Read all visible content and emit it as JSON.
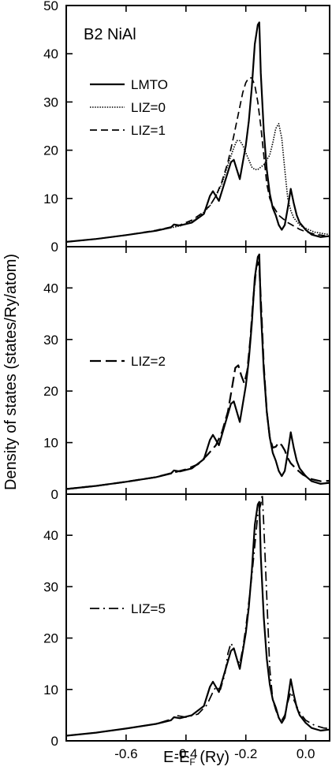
{
  "chart_data": {
    "type": "line",
    "ylabel": "Density of states (states/Ry/atom)",
    "xlabel_main": "E-E",
    "xlabel_sub": "F",
    "xlabel_unit": " (Ry)",
    "xlim": [
      -0.8,
      0.08
    ],
    "x_ticks": [
      -0.6,
      -0.4,
      -0.2,
      0.0
    ],
    "x_tick_labels": [
      "-0.6",
      "-0.4",
      "-0.2",
      "0.0"
    ],
    "panels": [
      {
        "title": "B2 NiAl",
        "ylim": [
          0,
          50
        ],
        "y_ticks": [
          0,
          10,
          20,
          30,
          40,
          50
        ],
        "y_tick_labels": [
          "0",
          "10",
          "20",
          "30",
          "40",
          "50"
        ],
        "series": [
          {
            "name": "LMTO",
            "style": "solid",
            "x": [
              -0.8,
              -0.7,
              -0.6,
              -0.5,
              -0.45,
              -0.44,
              -0.42,
              -0.38,
              -0.34,
              -0.32,
              -0.31,
              -0.3,
              -0.29,
              -0.27,
              -0.25,
              -0.24,
              -0.23,
              -0.22,
              -0.21,
              -0.2,
              -0.19,
              -0.18,
              -0.17,
              -0.16,
              -0.155,
              -0.15,
              -0.14,
              -0.13,
              -0.12,
              -0.11,
              -0.1,
              -0.09,
              -0.08,
              -0.07,
              -0.06,
              -0.05,
              -0.04,
              -0.03,
              -0.02,
              0.0,
              0.02,
              0.05,
              0.08
            ],
            "y": [
              1,
              1.6,
              2.4,
              3.3,
              4.0,
              4.6,
              4.4,
              5.0,
              6.8,
              10.5,
              11.5,
              10.5,
              9.5,
              13.5,
              17.5,
              18.0,
              16.0,
              14.0,
              17.5,
              21.0,
              26.0,
              33.0,
              42.0,
              46.0,
              46.5,
              36.0,
              24.0,
              16.0,
              11.0,
              8.0,
              6.5,
              4.5,
              3.5,
              4.5,
              8.0,
              12.0,
              9.0,
              6.5,
              5.0,
              3.5,
              2.5,
              2.0,
              2.2
            ]
          },
          {
            "name": "LIZ=0",
            "style": "dotted",
            "x": [
              -0.8,
              -0.7,
              -0.6,
              -0.5,
              -0.42,
              -0.38,
              -0.35,
              -0.32,
              -0.3,
              -0.28,
              -0.26,
              -0.24,
              -0.23,
              -0.22,
              -0.21,
              -0.2,
              -0.19,
              -0.18,
              -0.17,
              -0.16,
              -0.14,
              -0.12,
              -0.11,
              -0.1,
              -0.09,
              -0.08,
              -0.07,
              -0.06,
              -0.05,
              -0.04,
              -0.02,
              0.0,
              0.03,
              0.06,
              0.08
            ],
            "y": [
              1,
              1.6,
              2.4,
              3.3,
              4.3,
              5.2,
              6.5,
              8.5,
              10.5,
              13.0,
              17.0,
              20.5,
              22.0,
              22.0,
              21.0,
              19.5,
              18.0,
              16.5,
              16.0,
              16.0,
              17.0,
              19.0,
              21.5,
              24.5,
              25.5,
              22.5,
              16.0,
              10.0,
              7.5,
              6.0,
              4.5,
              3.8,
              3.0,
              2.7,
              2.5
            ]
          },
          {
            "name": "LIZ=1",
            "style": "dashed",
            "x": [
              -0.8,
              -0.7,
              -0.6,
              -0.5,
              -0.42,
              -0.38,
              -0.35,
              -0.32,
              -0.3,
              -0.28,
              -0.26,
              -0.24,
              -0.22,
              -0.21,
              -0.2,
              -0.19,
              -0.18,
              -0.17,
              -0.16,
              -0.15,
              -0.14,
              -0.13,
              -0.12,
              -0.11,
              -0.1,
              -0.09,
              -0.08,
              -0.06,
              -0.04,
              -0.02,
              0.0,
              0.03,
              0.06,
              0.08
            ],
            "y": [
              1,
              1.6,
              2.4,
              3.4,
              4.5,
              5.5,
              6.8,
              8.5,
              10.5,
              13.5,
              17.5,
              23.0,
              29.0,
              32.0,
              34.0,
              35.0,
              35.0,
              33.5,
              30.0,
              25.0,
              19.0,
              13.0,
              10.0,
              8.5,
              7.5,
              6.5,
              6.0,
              5.0,
              4.3,
              3.6,
              3.1,
              2.6,
              2.3,
              2.1
            ]
          }
        ]
      },
      {
        "title": "",
        "ylim": [
          0,
          48
        ],
        "y_ticks": [
          0,
          10,
          20,
          30,
          40
        ],
        "y_tick_labels": [
          "0",
          "10",
          "20",
          "30",
          "40"
        ],
        "series": [
          {
            "name": "LMTO",
            "style": "solid",
            "legend": false,
            "x": [
              -0.8,
              -0.7,
              -0.6,
              -0.5,
              -0.45,
              -0.44,
              -0.42,
              -0.38,
              -0.34,
              -0.32,
              -0.31,
              -0.3,
              -0.29,
              -0.27,
              -0.25,
              -0.24,
              -0.23,
              -0.22,
              -0.21,
              -0.2,
              -0.19,
              -0.18,
              -0.17,
              -0.16,
              -0.155,
              -0.15,
              -0.14,
              -0.13,
              -0.12,
              -0.11,
              -0.1,
              -0.09,
              -0.08,
              -0.07,
              -0.06,
              -0.05,
              -0.04,
              -0.03,
              -0.02,
              0.0,
              0.02,
              0.05,
              0.08
            ],
            "y": [
              1,
              1.6,
              2.4,
              3.3,
              4.0,
              4.6,
              4.4,
              5.0,
              6.8,
              10.5,
              11.5,
              10.5,
              9.5,
              13.5,
              17.5,
              18.0,
              16.0,
              14.0,
              17.5,
              21.0,
              26.0,
              33.0,
              42.0,
              46.0,
              46.5,
              36.0,
              24.0,
              16.0,
              11.0,
              8.0,
              6.5,
              4.5,
              3.5,
              4.5,
              8.0,
              12.0,
              9.0,
              6.5,
              5.0,
              3.5,
              2.5,
              2.0,
              2.2
            ]
          },
          {
            "name": "LIZ=2",
            "style": "longdash",
            "x": [
              -0.8,
              -0.7,
              -0.6,
              -0.5,
              -0.44,
              -0.4,
              -0.36,
              -0.33,
              -0.3,
              -0.28,
              -0.26,
              -0.245,
              -0.235,
              -0.225,
              -0.215,
              -0.205,
              -0.195,
              -0.185,
              -0.175,
              -0.165,
              -0.16,
              -0.155,
              -0.15,
              -0.14,
              -0.13,
              -0.12,
              -0.11,
              -0.1,
              -0.09,
              -0.08,
              -0.07,
              -0.06,
              -0.05,
              -0.03,
              -0.01,
              0.02,
              0.05,
              0.08
            ],
            "y": [
              1,
              1.6,
              2.4,
              3.3,
              4.2,
              4.8,
              5.8,
              7.5,
              9.5,
              12.0,
              16.0,
              21.0,
              24.5,
              25.0,
              23.0,
              21.5,
              24.0,
              30.0,
              38.0,
              44.0,
              45.0,
              44.0,
              38.0,
              25.0,
              16.0,
              11.0,
              9.0,
              9.2,
              10.0,
              9.5,
              8.5,
              7.0,
              6.0,
              4.8,
              3.8,
              2.9,
              2.5,
              2.6
            ]
          }
        ]
      },
      {
        "title": "",
        "ylim": [
          0,
          48
        ],
        "y_ticks": [
          0,
          10,
          20,
          30,
          40
        ],
        "y_tick_labels": [
          "0",
          "10",
          "20",
          "30",
          "40"
        ],
        "series": [
          {
            "name": "LMTO",
            "style": "solid",
            "legend": false,
            "x": [
              -0.8,
              -0.7,
              -0.6,
              -0.5,
              -0.45,
              -0.44,
              -0.42,
              -0.38,
              -0.34,
              -0.32,
              -0.31,
              -0.3,
              -0.29,
              -0.27,
              -0.25,
              -0.24,
              -0.23,
              -0.22,
              -0.21,
              -0.2,
              -0.19,
              -0.18,
              -0.17,
              -0.16,
              -0.155,
              -0.15,
              -0.14,
              -0.13,
              -0.12,
              -0.11,
              -0.1,
              -0.09,
              -0.08,
              -0.07,
              -0.06,
              -0.05,
              -0.04,
              -0.03,
              -0.02,
              0.0,
              0.02,
              0.05,
              0.08
            ],
            "y": [
              1,
              1.6,
              2.4,
              3.3,
              4.0,
              4.6,
              4.4,
              5.0,
              6.8,
              10.5,
              11.5,
              10.5,
              9.5,
              13.5,
              17.5,
              18.0,
              16.0,
              14.0,
              17.5,
              21.0,
              26.0,
              33.0,
              42.0,
              46.0,
              46.5,
              36.0,
              24.0,
              16.0,
              11.0,
              8.0,
              6.5,
              4.5,
              3.5,
              4.5,
              8.0,
              12.0,
              9.0,
              6.5,
              5.0,
              3.5,
              2.5,
              2.0,
              2.2
            ]
          },
          {
            "name": "LIZ=5",
            "style": "dashdot",
            "x": [
              -0.8,
              -0.7,
              -0.6,
              -0.5,
              -0.45,
              -0.43,
              -0.4,
              -0.36,
              -0.33,
              -0.31,
              -0.3,
              -0.285,
              -0.27,
              -0.26,
              -0.25,
              -0.24,
              -0.23,
              -0.22,
              -0.21,
              -0.2,
              -0.19,
              -0.18,
              -0.17,
              -0.16,
              -0.15,
              -0.145,
              -0.14,
              -0.13,
              -0.12,
              -0.11,
              -0.1,
              -0.09,
              -0.08,
              -0.07,
              -0.06,
              -0.05,
              -0.04,
              -0.02,
              0.0,
              0.03,
              0.06,
              0.08
            ],
            "y": [
              1,
              1.6,
              2.4,
              3.3,
              4.2,
              4.9,
              4.6,
              5.2,
              7.0,
              9.5,
              10.5,
              10.0,
              13.0,
              17.0,
              19.0,
              18.0,
              16.0,
              15.0,
              18.0,
              22.0,
              27.0,
              32.0,
              38.0,
              44.0,
              46.0,
              48.0,
              42.0,
              28.0,
              14.0,
              8.0,
              6.0,
              4.5,
              4.0,
              5.0,
              7.5,
              9.5,
              8.0,
              5.5,
              4.0,
              3.0,
              2.5,
              2.4
            ]
          }
        ]
      }
    ]
  }
}
